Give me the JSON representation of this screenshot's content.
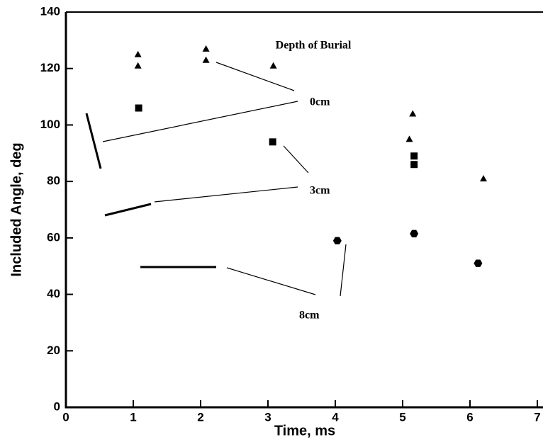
{
  "chart_data": {
    "type": "scatter",
    "x_label": "Time, ms",
    "y_label": "Included Angle, deg",
    "legend_title": "Depth of Burial",
    "xlim": [
      0,
      7
    ],
    "xticks": [
      0,
      1,
      2,
      3,
      4,
      5,
      6,
      7
    ],
    "ylim": [
      0,
      140
    ],
    "yticks": [
      0,
      20,
      40,
      60,
      80,
      100,
      120,
      140
    ],
    "series": [
      {
        "name": "0cm",
        "color": "#000000",
        "marker": "triangle",
        "x": [
          1.07,
          1.07,
          2.08,
          2.08,
          3.08,
          5.15,
          5.1,
          6.2
        ],
        "values": [
          125,
          121,
          127,
          123,
          121,
          104,
          95,
          81
        ]
      },
      {
        "name": "3cm",
        "color": "#000000",
        "marker": "square",
        "x": [
          1.08,
          3.07,
          5.17,
          5.17
        ],
        "values": [
          106,
          94,
          89,
          86
        ]
      },
      {
        "name": "8cm",
        "color": "#000000",
        "marker": "hexagon",
        "x": [
          4.03,
          5.17,
          6.12
        ],
        "values": [
          59,
          61.5,
          51
        ]
      }
    ]
  }
}
